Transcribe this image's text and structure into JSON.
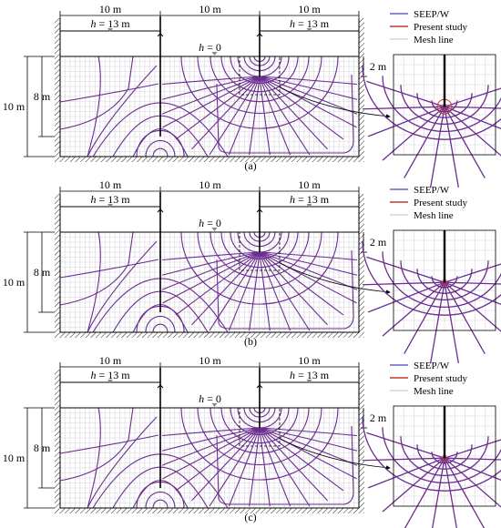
{
  "colors": {
    "seep": "#6a5fc9",
    "present": "#c0392b",
    "mesh": "#d6d6dc",
    "purple": "#6b2d8f"
  },
  "panels": [
    {
      "label": "(a)",
      "dims": {
        "width1": "10 m",
        "width2": "10 m",
        "width3": "10 m",
        "height_total": "10 m",
        "height_wall": "8 m",
        "detail_depth": "2 m"
      },
      "heads": {
        "left": "h = 13 m",
        "middle": "h = 0",
        "right": "h = 13 m"
      },
      "legend": [
        "SEEP/W",
        "Present study",
        "Mesh line"
      ]
    },
    {
      "label": "(b)",
      "dims": {
        "width1": "10 m",
        "width2": "10 m",
        "width3": "10 m",
        "height_total": "10 m",
        "height_wall": "8 m",
        "detail_depth": "2 m"
      },
      "heads": {
        "left": "h = 13 m",
        "middle": "h = 0",
        "right": "h = 13 m"
      },
      "legend": [
        "SEEP/W",
        "Present study",
        "Mesh line"
      ]
    },
    {
      "label": "(c)",
      "dims": {
        "width1": "10 m",
        "width2": "10 m",
        "width3": "10 m",
        "height_total": "10 m",
        "height_wall": "8 m",
        "detail_depth": "2 m"
      },
      "heads": {
        "left": "h = 13 m",
        "middle": "h = 0",
        "right": "h = 13 m"
      },
      "legend": [
        "SEEP/W",
        "Present study",
        "Mesh line"
      ]
    }
  ]
}
